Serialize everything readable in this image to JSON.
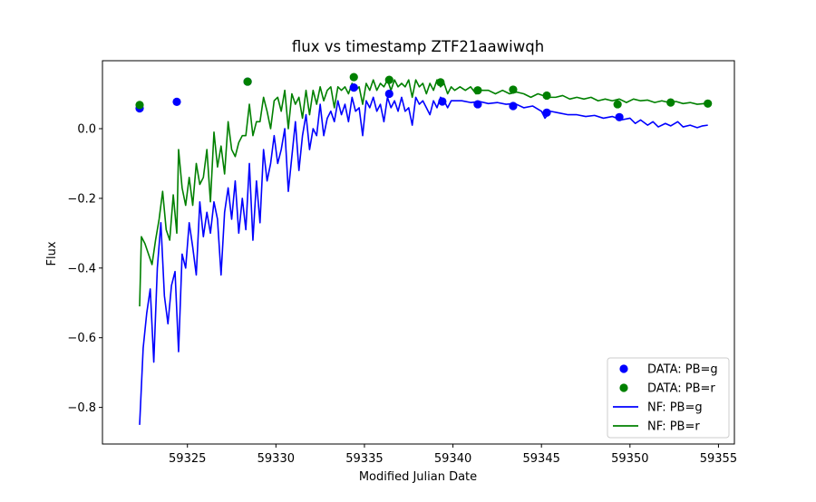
{
  "chart_data": {
    "type": "line",
    "title": "flux vs timestamp ZTF21aawiwqh",
    "xlabel": "Modified Julian Date",
    "ylabel": "Flux",
    "xlim": [
      59320.2,
      59355.9
    ],
    "ylim": [
      -0.905,
      0.195
    ],
    "xticks": [
      59325,
      59330,
      59335,
      59340,
      59345,
      59350,
      59355
    ],
    "yticks": [
      -0.8,
      -0.6,
      -0.4,
      -0.2,
      0.0
    ],
    "xtick_labels": [
      "59325",
      "59330",
      "59335",
      "59340",
      "59345",
      "59350",
      "59355"
    ],
    "ytick_labels": [
      "−0.8",
      "−0.6",
      "−0.4",
      "−0.2",
      "0.0"
    ],
    "grid": false,
    "legend_position": "lower-right",
    "colors": {
      "g": "#0000ff",
      "r": "#008000",
      "axis": "#000000"
    },
    "scatter_series": [
      {
        "name": "DATA: PB=g",
        "color": "#0000ff",
        "points": [
          [
            59322.3,
            0.058
          ],
          [
            59324.4,
            0.077
          ],
          [
            59328.4,
            0.135
          ],
          [
            59334.4,
            0.118
          ],
          [
            59336.4,
            0.1
          ],
          [
            59339.4,
            0.078
          ],
          [
            59341.4,
            0.07
          ],
          [
            59343.4,
            0.065
          ],
          [
            59345.3,
            0.046
          ],
          [
            59349.4,
            0.033
          ]
        ]
      },
      {
        "name": "DATA: PB=r",
        "color": "#008000",
        "points": [
          [
            59322.3,
            0.068
          ],
          [
            59328.4,
            0.135
          ],
          [
            59334.4,
            0.148
          ],
          [
            59336.4,
            0.14
          ],
          [
            59339.3,
            0.133
          ],
          [
            59341.4,
            0.11
          ],
          [
            59343.4,
            0.112
          ],
          [
            59345.3,
            0.095
          ],
          [
            59349.3,
            0.07
          ],
          [
            59352.3,
            0.075
          ],
          [
            59354.4,
            0.072
          ]
        ]
      }
    ],
    "line_series": [
      {
        "name": "NF: PB=g",
        "color": "#0000ff",
        "points": [
          [
            59322.3,
            -0.85
          ],
          [
            59322.5,
            -0.63
          ],
          [
            59322.7,
            -0.53
          ],
          [
            59322.9,
            -0.46
          ],
          [
            59323.1,
            -0.67
          ],
          [
            59323.3,
            -0.4
          ],
          [
            59323.5,
            -0.27
          ],
          [
            59323.7,
            -0.48
          ],
          [
            59323.9,
            -0.56
          ],
          [
            59324.1,
            -0.45
          ],
          [
            59324.3,
            -0.41
          ],
          [
            59324.5,
            -0.64
          ],
          [
            59324.7,
            -0.36
          ],
          [
            59324.9,
            -0.4
          ],
          [
            59325.1,
            -0.27
          ],
          [
            59325.3,
            -0.34
          ],
          [
            59325.5,
            -0.42
          ],
          [
            59325.7,
            -0.21
          ],
          [
            59325.9,
            -0.31
          ],
          [
            59326.1,
            -0.24
          ],
          [
            59326.3,
            -0.3
          ],
          [
            59326.5,
            -0.21
          ],
          [
            59326.7,
            -0.26
          ],
          [
            59326.9,
            -0.42
          ],
          [
            59327.1,
            -0.24
          ],
          [
            59327.3,
            -0.17
          ],
          [
            59327.5,
            -0.26
          ],
          [
            59327.7,
            -0.15
          ],
          [
            59327.9,
            -0.3
          ],
          [
            59328.1,
            -0.2
          ],
          [
            59328.3,
            -0.29
          ],
          [
            59328.5,
            -0.1
          ],
          [
            59328.7,
            -0.32
          ],
          [
            59328.9,
            -0.15
          ],
          [
            59329.1,
            -0.27
          ],
          [
            59329.3,
            -0.06
          ],
          [
            59329.5,
            -0.15
          ],
          [
            59329.7,
            -0.1
          ],
          [
            59329.9,
            -0.02
          ],
          [
            59330.1,
            -0.1
          ],
          [
            59330.3,
            -0.06
          ],
          [
            59330.5,
            0.0
          ],
          [
            59330.7,
            -0.18
          ],
          [
            59330.9,
            -0.08
          ],
          [
            59331.1,
            0.02
          ],
          [
            59331.3,
            -0.12
          ],
          [
            59331.5,
            -0.02
          ],
          [
            59331.7,
            0.04
          ],
          [
            59331.9,
            -0.06
          ],
          [
            59332.1,
            0.0
          ],
          [
            59332.3,
            -0.02
          ],
          [
            59332.5,
            0.07
          ],
          [
            59332.7,
            -0.02
          ],
          [
            59332.9,
            0.03
          ],
          [
            59333.1,
            0.05
          ],
          [
            59333.3,
            0.02
          ],
          [
            59333.5,
            0.08
          ],
          [
            59333.7,
            0.04
          ],
          [
            59333.9,
            0.07
          ],
          [
            59334.1,
            0.02
          ],
          [
            59334.3,
            0.09
          ],
          [
            59334.5,
            0.05
          ],
          [
            59334.7,
            0.06
          ],
          [
            59334.9,
            -0.02
          ],
          [
            59335.1,
            0.08
          ],
          [
            59335.3,
            0.06
          ],
          [
            59335.5,
            0.09
          ],
          [
            59335.7,
            0.05
          ],
          [
            59335.9,
            0.07
          ],
          [
            59336.1,
            0.02
          ],
          [
            59336.3,
            0.09
          ],
          [
            59336.5,
            0.06
          ],
          [
            59336.7,
            0.08
          ],
          [
            59336.9,
            0.05
          ],
          [
            59337.1,
            0.09
          ],
          [
            59337.3,
            0.05
          ],
          [
            59337.5,
            0.06
          ],
          [
            59337.7,
            0.01
          ],
          [
            59337.9,
            0.09
          ],
          [
            59338.1,
            0.07
          ],
          [
            59338.3,
            0.08
          ],
          [
            59338.5,
            0.06
          ],
          [
            59338.7,
            0.04
          ],
          [
            59338.9,
            0.08
          ],
          [
            59339.1,
            0.06
          ],
          [
            59339.3,
            0.09
          ],
          [
            59339.5,
            0.08
          ],
          [
            59339.7,
            0.06
          ],
          [
            59339.9,
            0.08
          ],
          [
            59340.1,
            0.08
          ],
          [
            59340.5,
            0.08
          ],
          [
            59341.0,
            0.075
          ],
          [
            59341.5,
            0.078
          ],
          [
            59342.0,
            0.072
          ],
          [
            59342.5,
            0.075
          ],
          [
            59343.0,
            0.07
          ],
          [
            59343.5,
            0.072
          ],
          [
            59344.0,
            0.06
          ],
          [
            59344.5,
            0.065
          ],
          [
            59345.0,
            0.05
          ],
          [
            59345.2,
            0.03
          ],
          [
            59345.5,
            0.05
          ],
          [
            59346.0,
            0.045
          ],
          [
            59346.5,
            0.04
          ],
          [
            59347.0,
            0.04
          ],
          [
            59347.5,
            0.035
          ],
          [
            59348.0,
            0.038
          ],
          [
            59348.5,
            0.03
          ],
          [
            59349.0,
            0.035
          ],
          [
            59349.5,
            0.025
          ],
          [
            59350.0,
            0.03
          ],
          [
            59350.3,
            0.015
          ],
          [
            59350.6,
            0.025
          ],
          [
            59351.0,
            0.01
          ],
          [
            59351.3,
            0.02
          ],
          [
            59351.6,
            0.005
          ],
          [
            59352.0,
            0.015
          ],
          [
            59352.3,
            0.008
          ],
          [
            59352.7,
            0.02
          ],
          [
            59353.0,
            0.005
          ],
          [
            59353.4,
            0.01
          ],
          [
            59353.8,
            0.003
          ],
          [
            59354.1,
            0.008
          ],
          [
            59354.4,
            0.01
          ]
        ]
      },
      {
        "name": "NF: PB=r",
        "color": "#008000",
        "points": [
          [
            59322.3,
            -0.51
          ],
          [
            59322.4,
            -0.31
          ],
          [
            59322.6,
            -0.33
          ],
          [
            59322.8,
            -0.36
          ],
          [
            59323.0,
            -0.39
          ],
          [
            59323.2,
            -0.32
          ],
          [
            59323.4,
            -0.26
          ],
          [
            59323.6,
            -0.18
          ],
          [
            59323.8,
            -0.29
          ],
          [
            59324.0,
            -0.32
          ],
          [
            59324.2,
            -0.19
          ],
          [
            59324.4,
            -0.3
          ],
          [
            59324.5,
            -0.06
          ],
          [
            59324.7,
            -0.17
          ],
          [
            59324.9,
            -0.22
          ],
          [
            59325.1,
            -0.14
          ],
          [
            59325.3,
            -0.22
          ],
          [
            59325.5,
            -0.1
          ],
          [
            59325.7,
            -0.16
          ],
          [
            59325.9,
            -0.14
          ],
          [
            59326.1,
            -0.06
          ],
          [
            59326.3,
            -0.21
          ],
          [
            59326.5,
            -0.01
          ],
          [
            59326.7,
            -0.11
          ],
          [
            59326.9,
            -0.05
          ],
          [
            59327.1,
            -0.13
          ],
          [
            59327.3,
            0.02
          ],
          [
            59327.5,
            -0.06
          ],
          [
            59327.7,
            -0.08
          ],
          [
            59327.9,
            -0.04
          ],
          [
            59328.1,
            -0.02
          ],
          [
            59328.3,
            -0.02
          ],
          [
            59328.5,
            0.07
          ],
          [
            59328.7,
            -0.02
          ],
          [
            59328.9,
            0.02
          ],
          [
            59329.1,
            0.02
          ],
          [
            59329.3,
            0.09
          ],
          [
            59329.5,
            0.05
          ],
          [
            59329.7,
            0.0
          ],
          [
            59329.9,
            0.08
          ],
          [
            59330.1,
            0.09
          ],
          [
            59330.3,
            0.05
          ],
          [
            59330.5,
            0.11
          ],
          [
            59330.7,
            0.0
          ],
          [
            59330.9,
            0.1
          ],
          [
            59331.1,
            0.07
          ],
          [
            59331.3,
            0.09
          ],
          [
            59331.5,
            0.03
          ],
          [
            59331.7,
            0.11
          ],
          [
            59331.9,
            0.04
          ],
          [
            59332.1,
            0.11
          ],
          [
            59332.3,
            0.07
          ],
          [
            59332.5,
            0.12
          ],
          [
            59332.7,
            0.08
          ],
          [
            59332.9,
            0.11
          ],
          [
            59333.1,
            0.12
          ],
          [
            59333.3,
            0.06
          ],
          [
            59333.5,
            0.12
          ],
          [
            59333.7,
            0.11
          ],
          [
            59333.9,
            0.12
          ],
          [
            59334.1,
            0.1
          ],
          [
            59334.3,
            0.13
          ],
          [
            59334.5,
            0.11
          ],
          [
            59334.7,
            0.12
          ],
          [
            59334.9,
            0.07
          ],
          [
            59335.1,
            0.13
          ],
          [
            59335.3,
            0.11
          ],
          [
            59335.5,
            0.14
          ],
          [
            59335.7,
            0.11
          ],
          [
            59335.9,
            0.13
          ],
          [
            59336.1,
            0.12
          ],
          [
            59336.3,
            0.14
          ],
          [
            59336.5,
            0.11
          ],
          [
            59336.7,
            0.14
          ],
          [
            59336.9,
            0.12
          ],
          [
            59337.1,
            0.13
          ],
          [
            59337.3,
            0.12
          ],
          [
            59337.5,
            0.14
          ],
          [
            59337.7,
            0.09
          ],
          [
            59337.9,
            0.14
          ],
          [
            59338.1,
            0.12
          ],
          [
            59338.3,
            0.13
          ],
          [
            59338.5,
            0.1
          ],
          [
            59338.7,
            0.13
          ],
          [
            59338.9,
            0.11
          ],
          [
            59339.1,
            0.14
          ],
          [
            59339.3,
            0.12
          ],
          [
            59339.5,
            0.13
          ],
          [
            59339.7,
            0.1
          ],
          [
            59339.9,
            0.12
          ],
          [
            59340.1,
            0.11
          ],
          [
            59340.4,
            0.12
          ],
          [
            59340.7,
            0.11
          ],
          [
            59341.0,
            0.12
          ],
          [
            59341.3,
            0.1
          ],
          [
            59341.6,
            0.11
          ],
          [
            59342.0,
            0.11
          ],
          [
            59342.4,
            0.1
          ],
          [
            59342.8,
            0.11
          ],
          [
            59343.2,
            0.1
          ],
          [
            59343.6,
            0.105
          ],
          [
            59344.0,
            0.1
          ],
          [
            59344.4,
            0.09
          ],
          [
            59344.8,
            0.1
          ],
          [
            59345.1,
            0.095
          ],
          [
            59345.4,
            0.09
          ],
          [
            59345.8,
            0.09
          ],
          [
            59346.2,
            0.095
          ],
          [
            59346.6,
            0.085
          ],
          [
            59347.0,
            0.09
          ],
          [
            59347.4,
            0.085
          ],
          [
            59347.8,
            0.09
          ],
          [
            59348.2,
            0.08
          ],
          [
            59348.6,
            0.085
          ],
          [
            59349.0,
            0.08
          ],
          [
            59349.4,
            0.085
          ],
          [
            59349.8,
            0.075
          ],
          [
            59350.2,
            0.085
          ],
          [
            59350.6,
            0.08
          ],
          [
            59351.0,
            0.082
          ],
          [
            59351.4,
            0.075
          ],
          [
            59351.8,
            0.08
          ],
          [
            59352.2,
            0.075
          ],
          [
            59352.6,
            0.078
          ],
          [
            59353.0,
            0.072
          ],
          [
            59353.4,
            0.075
          ],
          [
            59353.8,
            0.07
          ],
          [
            59354.2,
            0.072
          ],
          [
            59354.4,
            0.07
          ]
        ]
      }
    ]
  }
}
